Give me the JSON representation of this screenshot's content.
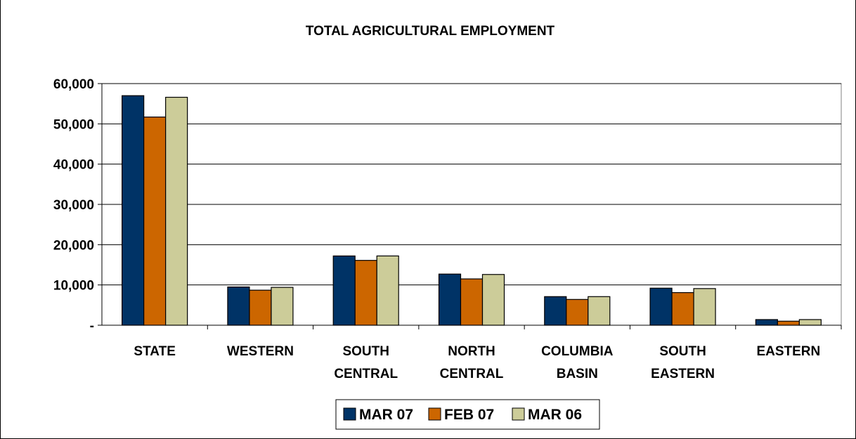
{
  "chart_data": {
    "type": "bar",
    "title": "TOTAL AGRICULTURAL EMPLOYMENT",
    "categories": [
      [
        "STATE"
      ],
      [
        "WESTERN"
      ],
      [
        "SOUTH",
        "CENTRAL"
      ],
      [
        "NORTH",
        "CENTRAL"
      ],
      [
        "COLUMBIA",
        "BASIN"
      ],
      [
        "SOUTH",
        "EASTERN"
      ],
      [
        "EASTERN"
      ]
    ],
    "series": [
      {
        "name": "MAR 07",
        "color": "#003366",
        "values": [
          57000,
          9500,
          17200,
          12700,
          7100,
          9200,
          1400
        ]
      },
      {
        "name": "FEB 07",
        "color": "#CC6600",
        "values": [
          51700,
          8700,
          16100,
          11500,
          6400,
          8100,
          1000
        ]
      },
      {
        "name": "MAR 06",
        "color": "#CCCC99",
        "values": [
          56600,
          9400,
          17200,
          12600,
          7100,
          9100,
          1400
        ]
      }
    ],
    "ylim": [
      0,
      60000
    ],
    "yticks": [
      {
        "value": 0,
        "label": "-"
      },
      {
        "value": 10000,
        "label": "10,000"
      },
      {
        "value": 20000,
        "label": "20,000"
      },
      {
        "value": 30000,
        "label": "30,000"
      },
      {
        "value": 40000,
        "label": "40,000"
      },
      {
        "value": 50000,
        "label": "50,000"
      },
      {
        "value": 60000,
        "label": "60,000"
      }
    ],
    "grid": true,
    "legend": "bottom-center"
  }
}
